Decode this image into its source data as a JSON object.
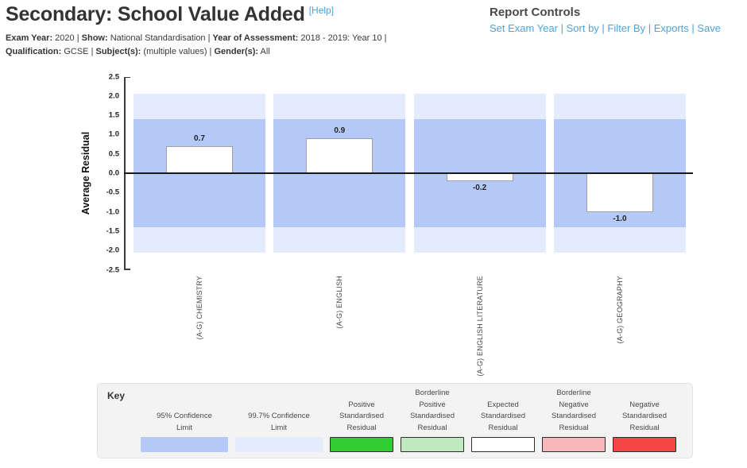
{
  "header": {
    "title": "Secondary: School Value Added",
    "help_label": "[Help]",
    "meta_lines": [
      {
        "pairs": [
          [
            "Exam Year:",
            "2020"
          ],
          [
            "Show:",
            "National Standardisation"
          ],
          [
            "Year of Assessment:",
            "2018 - 2019: Year 10"
          ]
        ],
        "trailing_pipe": true
      },
      {
        "pairs": [
          [
            "Qualification:",
            "GCSE"
          ],
          [
            "Subject(s):",
            "(multiple values)"
          ],
          [
            "Gender(s):",
            "All"
          ]
        ],
        "trailing_pipe": false
      }
    ]
  },
  "report_controls": {
    "title": "Report Controls",
    "links": [
      "Set Exam Year",
      "Sort by",
      "Filter By",
      "Exports",
      "Save"
    ],
    "link_color": "#4aa4e4"
  },
  "chart_data": {
    "type": "bar",
    "title": "",
    "ylabel": "Average Residual",
    "ylim": [
      -2.5,
      2.5
    ],
    "ytick_labels": [
      "2.5",
      "2.0",
      "1.5",
      "1.0",
      "0.5",
      "0.0",
      "-0.5",
      "-1.0",
      "-1.5",
      "-2.0",
      "-2.5"
    ],
    "categories": [
      "(A-G) CHEMISTRY",
      "(A-G) ENGLISH",
      "(A-G) ENGLISH LITERATURE",
      "(A-G) GEOGRAPHY"
    ],
    "values": [
      0.7,
      0.9,
      -0.2,
      -1.0
    ],
    "value_labels": [
      "0.7",
      "0.9",
      "-0.2",
      "-1.0"
    ],
    "x_labels_rotated": true,
    "grid": false,
    "bar_fill": "#ffffff",
    "bar_border": "#a0a0a0",
    "zero_line_color": "#1a1a1a",
    "bands": [
      {
        "name": "99.7% Confidence Limit",
        "from": -2.05,
        "to": 2.05,
        "color": "#e4ebfc"
      },
      {
        "name": "95% Confidence Limit",
        "from": -1.4,
        "to": 1.4,
        "color": "#b4c9f7"
      }
    ]
  },
  "key": {
    "title": "Key",
    "items": [
      {
        "label_lines": [
          "95% Confidence",
          "Limit"
        ],
        "fill": "#b4c9f7",
        "border": null
      },
      {
        "label_lines": [
          "99.7% Confidence",
          "Limit"
        ],
        "fill": "#e4ebfc",
        "border": null
      },
      {
        "label_lines": [
          "Positive",
          "Standardised",
          "Residual"
        ],
        "fill": "#33cc33",
        "border": "#2d2d2d"
      },
      {
        "label_lines": [
          "Borderline",
          "Positive",
          "Standardised",
          "Residual"
        ],
        "fill": "#bfeabf",
        "border": "#2d2d2d"
      },
      {
        "label_lines": [
          "Expected",
          "Standardised",
          "Residual"
        ],
        "fill": "#ffffff",
        "border": "#2d2d2d"
      },
      {
        "label_lines": [
          "Borderline",
          "Negative",
          "Standardised",
          "Residual"
        ],
        "fill": "#f8b7ba",
        "border": "#2d2d2d"
      },
      {
        "label_lines": [
          "Negative",
          "Standardised",
          "Residual"
        ],
        "fill": "#f64545",
        "border": "#2d2d2d"
      }
    ]
  }
}
